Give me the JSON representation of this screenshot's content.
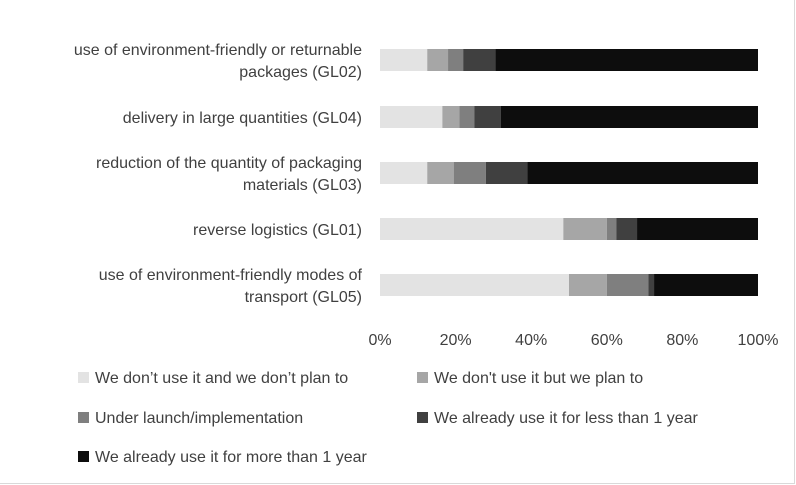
{
  "chart_data": {
    "type": "bar",
    "orientation": "horizontal",
    "stacked": "percent",
    "categories": [
      [
        "use of environment-friendly or returnable",
        "packages (GL02)"
      ],
      [
        "delivery in large quantities (GL04)"
      ],
      [
        "reduction of the quantity of packaging",
        "materials (GL03)"
      ],
      [
        "reverse logistics (GL01)"
      ],
      [
        "use of environment-friendly modes of",
        "transport (GL05)"
      ]
    ],
    "series": [
      {
        "name": "We don’t use it and we don’t plan to",
        "color": "#e3e3e3",
        "values": [
          12.5,
          16.5,
          12.5,
          48.5,
          50
        ]
      },
      {
        "name": "We don't use it but we plan to",
        "color": "#a6a6a6",
        "values": [
          5.5,
          4.5,
          7,
          11.5,
          10
        ]
      },
      {
        "name": "Under launch/implementation",
        "color": "#7f7f7f",
        "values": [
          4,
          4,
          8.5,
          2.5,
          11
        ]
      },
      {
        "name": "We already use it for less than 1 year",
        "color": "#404040",
        "values": [
          8.5,
          7,
          11,
          5.5,
          1.5
        ]
      },
      {
        "name": "We already use it for more than 1 year",
        "color": "#0d0d0d",
        "values": [
          69.5,
          68,
          61,
          32,
          27.5
        ]
      }
    ],
    "xlim": [
      0,
      100
    ],
    "xticks": [
      "0%",
      "20%",
      "40%",
      "60%",
      "80%",
      "100%"
    ],
    "grid": false,
    "legend_position": "bottom",
    "title": "",
    "xlabel": "",
    "ylabel": ""
  }
}
